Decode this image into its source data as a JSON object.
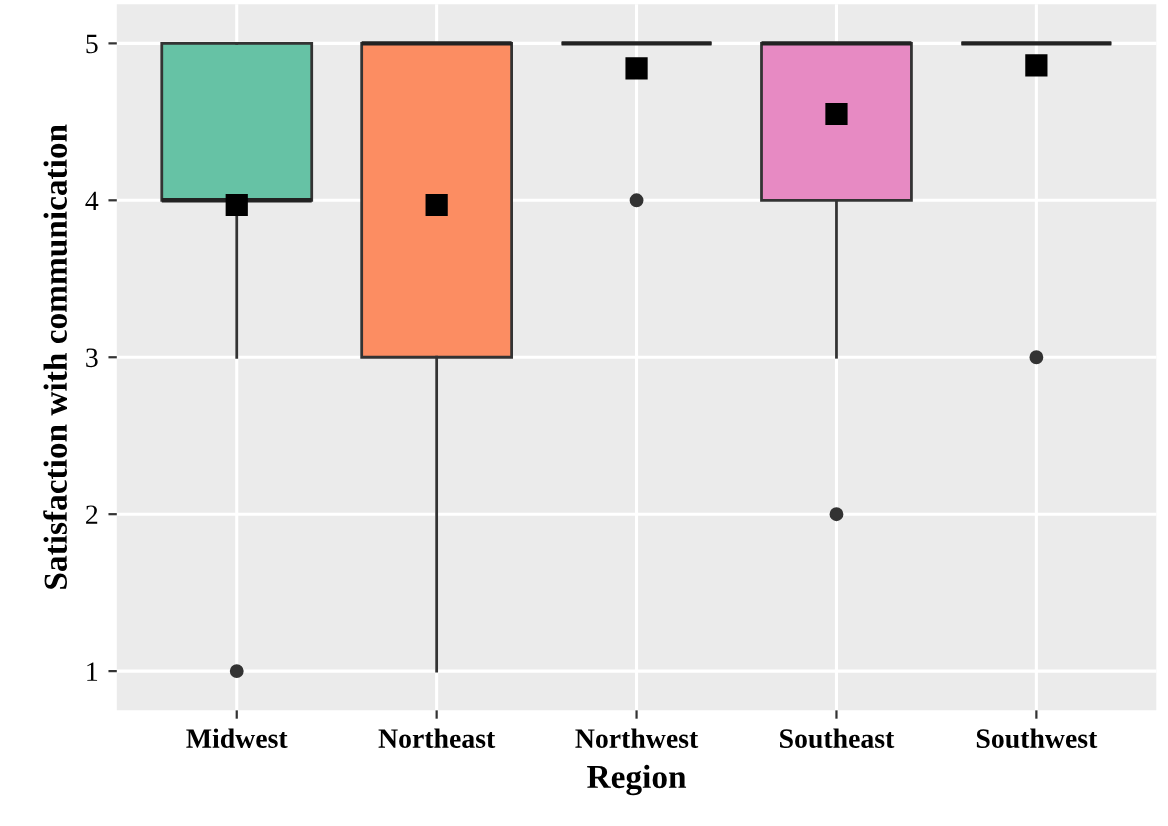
{
  "chart_data": {
    "type": "box",
    "xlabel": "Region",
    "ylabel": "Satisfaction with communication",
    "categories": [
      "Midwest",
      "Northeast",
      "Northwest",
      "Southeast",
      "Southwest"
    ],
    "colors": [
      "#66c2a5",
      "#fc8d62",
      null,
      "#e78ac3",
      null
    ],
    "boxes": [
      {
        "low": 3,
        "q1": 4,
        "median": 4,
        "q3": 5,
        "high": 5,
        "mean": 3.97,
        "outliers": [
          1
        ]
      },
      {
        "low": 1,
        "q1": 3,
        "median": 5,
        "q3": 5,
        "high": 5,
        "mean": 3.97
      },
      {
        "low": 5,
        "q1": 5,
        "median": 5,
        "q3": 5,
        "high": 5,
        "mean": 4.84,
        "outliers": [
          4
        ]
      },
      {
        "low": 3,
        "q1": 4,
        "median": 5,
        "q3": 5,
        "high": 5,
        "mean": 4.55,
        "outliers": [
          2
        ]
      },
      {
        "low": 5,
        "q1": 5,
        "median": 5,
        "q3": 5,
        "high": 5,
        "mean": 4.86,
        "outliers": [
          3
        ]
      }
    ],
    "ylim": [
      0.75,
      5.25
    ],
    "yticks": [
      1,
      2,
      3,
      4,
      5
    ],
    "grid": true,
    "legend": false,
    "marker": "square"
  }
}
